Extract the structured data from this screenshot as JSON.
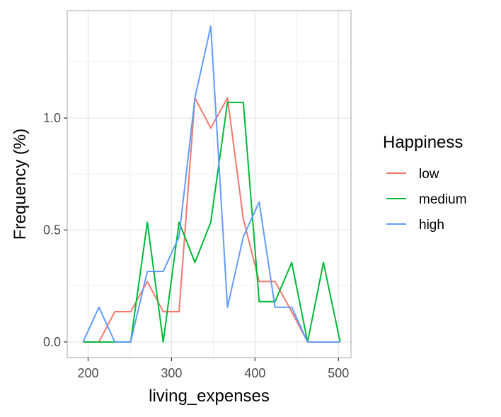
{
  "chart_data": {
    "type": "line",
    "title": "",
    "xlabel": "living_expenses",
    "ylabel": "Frequency (%)",
    "xlim": [
      175,
      515
    ],
    "ylim": [
      -0.07,
      1.48
    ],
    "x_ticks": [
      200,
      300,
      400,
      500
    ],
    "y_ticks": [
      0.0,
      0.5,
      1.0
    ],
    "x_tick_labels": [
      "200",
      "300",
      "400",
      "500"
    ],
    "y_tick_labels": [
      "0.0",
      "0.5",
      "1.0"
    ],
    "grid": true,
    "legend": {
      "title": "Happiness",
      "position": "right"
    },
    "series": [
      {
        "name": "low",
        "color": "#F8766D",
        "x": [
          194,
          213,
          232,
          251,
          271,
          290,
          309,
          328,
          347,
          367,
          386,
          405,
          424,
          444,
          463,
          482,
          502
        ],
        "y": [
          0.0,
          0.0,
          0.135,
          0.135,
          0.27,
          0.135,
          0.135,
          1.09,
          0.955,
          1.09,
          0.55,
          0.27,
          0.27,
          0.135,
          0.0,
          0.0,
          0.0
        ]
      },
      {
        "name": "medium",
        "color": "#00BA38",
        "x": [
          194,
          213,
          232,
          251,
          271,
          290,
          309,
          328,
          347,
          367,
          386,
          405,
          424,
          444,
          463,
          482,
          502
        ],
        "y": [
          0.0,
          0.0,
          0.0,
          0.0,
          0.535,
          0.0,
          0.535,
          0.355,
          0.535,
          1.07,
          1.07,
          0.18,
          0.18,
          0.355,
          0.0,
          0.355,
          0.0
        ]
      },
      {
        "name": "high",
        "color": "#619CFF",
        "x": [
          194,
          213,
          232,
          251,
          271,
          290,
          309,
          328,
          347,
          367,
          386,
          405,
          424,
          444,
          463,
          482,
          502
        ],
        "y": [
          0.0,
          0.155,
          0.0,
          0.0,
          0.315,
          0.315,
          0.47,
          1.09,
          1.41,
          0.155,
          0.47,
          0.625,
          0.155,
          0.155,
          0.0,
          0.0,
          0.0
        ]
      }
    ]
  }
}
